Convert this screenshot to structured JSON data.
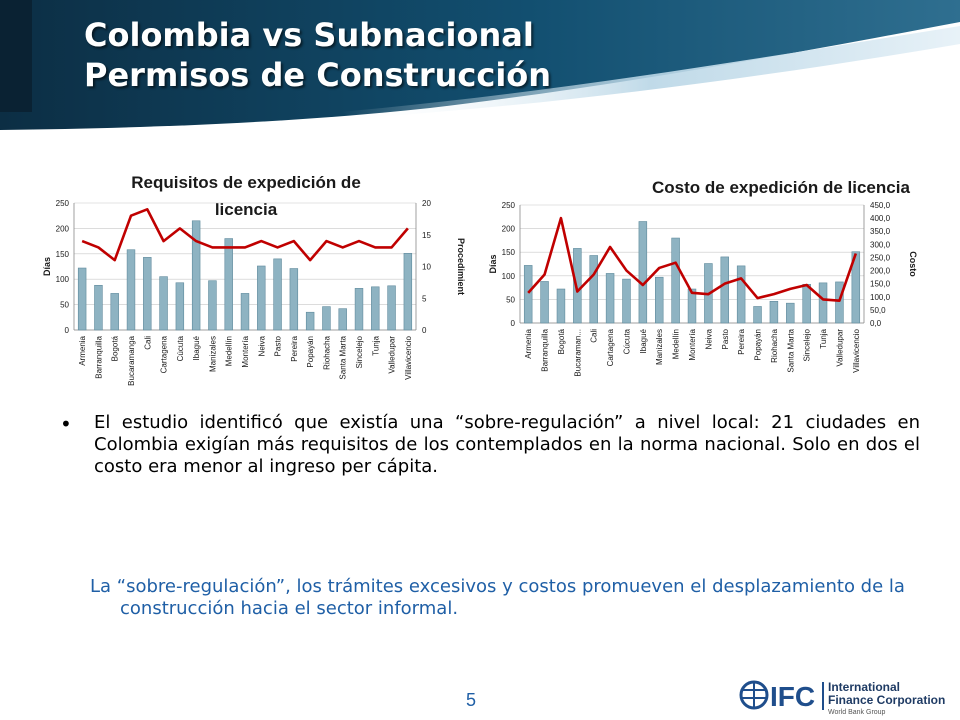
{
  "header": {
    "title_line1": "Colombia vs Subnacional",
    "title_line2": "Permisos de Construcción"
  },
  "colors": {
    "header_dark": "#0c2e44",
    "header_mid": "#124f70",
    "header_light": "#cfe3ee",
    "bar": "#8eb3c2",
    "line": "#c00000",
    "conclusion_text": "#1f5fa6"
  },
  "chart_data": [
    {
      "type": "bar",
      "title": "Requisitos de expedición de licencia",
      "ylabel": "Días",
      "y2label": "Procedimient",
      "categories": [
        "Armenia",
        "Barranquilla",
        "Bogotá",
        "Bucaramanga",
        "Cali",
        "Cartagena",
        "Cúcuta",
        "Ibagué",
        "Manizales",
        "Medellín",
        "Montería",
        "Neiva",
        "Pasto",
        "Pereira",
        "Popayán",
        "Riohacha",
        "Santa Marta",
        "Sincelejo",
        "Tunja",
        "Valledupar",
        "Villavicencio"
      ],
      "series": [
        {
          "name": "Días",
          "type": "bar",
          "axis": "left",
          "values": [
            122,
            88,
            72,
            158,
            143,
            105,
            93,
            215,
            97,
            180,
            72,
            126,
            140,
            121,
            35,
            46,
            42,
            82,
            85,
            87,
            151
          ]
        },
        {
          "name": "Procedimientos",
          "type": "line",
          "axis": "right",
          "values": [
            14,
            13,
            11,
            18,
            19,
            14,
            16,
            14,
            13,
            13,
            13,
            14,
            13,
            14,
            11,
            14,
            13,
            14,
            13,
            13,
            16
          ]
        }
      ],
      "ylim": [
        0,
        250
      ],
      "yticks": [
        "0",
        "50",
        "100",
        "150",
        "200",
        "250"
      ],
      "y2lim": [
        0,
        20
      ],
      "y2ticks": [
        "0",
        "5",
        "10",
        "15",
        "20"
      ]
    },
    {
      "type": "bar",
      "title": "Costo de expedición de licencia",
      "ylabel": "Días",
      "y2label": "Costo",
      "categories": [
        "Armenia",
        "Barranquilla",
        "Bogotá",
        "Bucaraman...",
        "Cali",
        "Cartagena",
        "Cúcuta",
        "Ibagué",
        "Manizales",
        "Medellín",
        "Montería",
        "Neiva",
        "Pasto",
        "Pereira",
        "Popayán",
        "Riohacha",
        "Santa Marta",
        "Sincelejo",
        "Tunja",
        "Valledupar",
        "Villavicencio"
      ],
      "series": [
        {
          "name": "Días",
          "type": "bar",
          "axis": "left",
          "values": [
            122,
            88,
            72,
            158,
            143,
            105,
            93,
            215,
            97,
            180,
            72,
            126,
            140,
            121,
            35,
            46,
            42,
            82,
            85,
            87,
            151
          ]
        },
        {
          "name": "Costo",
          "type": "line",
          "axis": "right",
          "values": [
            115,
            185,
            400,
            120,
            185,
            290,
            200,
            145,
            210,
            230,
            115,
            110,
            150,
            170,
            95,
            110,
            130,
            145,
            90,
            85,
            265
          ]
        }
      ],
      "ylim": [
        0,
        250
      ],
      "yticks": [
        "0",
        "50",
        "100",
        "150",
        "200",
        "250"
      ],
      "y2lim": [
        0,
        450
      ],
      "y2ticks": [
        "0,0",
        "50,0",
        "100,0",
        "150,0",
        "200,0",
        "250,0",
        "300,0",
        "350,0",
        "400,0",
        "450,0"
      ]
    }
  ],
  "body": {
    "bullet": "El estudio identificó que existía una “sobre-regulación” a nivel local: 21 ciudades en Colombia exigían más requisitos de los contemplados en la norma nacional. Solo en dos el costo era menor al ingreso per cápita.",
    "conclusion": "La “sobre-regulación”, los trámites excesivos y costos promueven el desplazamiento de la construcción hacia el sector informal."
  },
  "footer": {
    "page_number": "5",
    "logo_mark": "IFC",
    "logo_name_line1": "International",
    "logo_name_line2": "Finance Corporation",
    "logo_sub": "World Bank Group"
  }
}
